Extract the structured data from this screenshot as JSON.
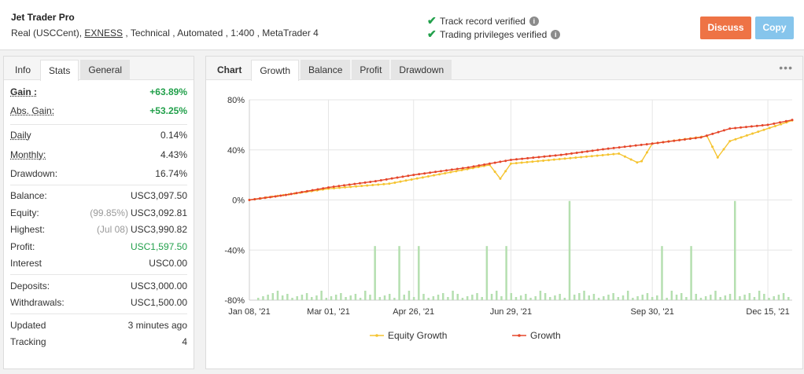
{
  "header": {
    "title": "Jet Trader Pro",
    "subtitle_prefix": "Real (USCCent), ",
    "broker": "EXNESS",
    "subtitle_suffix": " , Technical , Automated , 1:400 , MetaTrader 4",
    "verified": [
      "Track record verified",
      "Trading privileges verified"
    ],
    "discuss_label": "Discuss",
    "copy_label": "Copy"
  },
  "stats_tabs": [
    "Info",
    "Stats",
    "General"
  ],
  "stats": {
    "gain_label": "Gain :",
    "gain_value": "+63.89%",
    "abs_gain_label": "Abs. Gain:",
    "abs_gain_value": "+53.25%",
    "daily_label": "Daily",
    "daily_value": "0.14%",
    "monthly_label": "Monthly:",
    "monthly_value": "4.43%",
    "drawdown_label": "Drawdown:",
    "drawdown_value": "16.74%",
    "balance_label": "Balance:",
    "balance_value": "USC3,097.50",
    "equity_label": "Equity:",
    "equity_pct": "(99.85%)",
    "equity_value": "USC3,092.81",
    "highest_label": "Highest:",
    "highest_date": "(Jul 08)",
    "highest_value": "USC3,990.82",
    "profit_label": "Profit:",
    "profit_value": "USC1,597.50",
    "interest_label": "Interest",
    "interest_value": "USC0.00",
    "deposits_label": "Deposits:",
    "deposits_value": "USC3,000.00",
    "withdrawals_label": "Withdrawals:",
    "withdrawals_value": "USC1,500.00",
    "updated_label": "Updated",
    "updated_value": "3 minutes ago",
    "tracking_label": "Tracking",
    "tracking_value": "4"
  },
  "chart_tabs": [
    "Chart",
    "Growth",
    "Balance",
    "Profit",
    "Drawdown"
  ],
  "menu_icon": "more-dots-icon",
  "colors": {
    "growth": "#e5462a",
    "equity": "#f5c431",
    "bars": "#b5dfb0",
    "green": "#22a04b",
    "discuss": "#ee7345",
    "copy": "#86c5ec"
  },
  "chart_data": {
    "type": "line",
    "x_ticks": [
      "Jan 08, '21",
      "Mar 01, '21",
      "Apr 26, '21",
      "Jun 29, '21",
      "Sep 30, '21",
      "Dec 15, '21"
    ],
    "y_ticks": [
      "80%",
      "40%",
      "0%",
      "-40%",
      "-80%"
    ],
    "ylim": [
      -80,
      80
    ],
    "grid": true,
    "legend": "bottom",
    "series": [
      {
        "name": "Growth",
        "x": [
          "2021-01-08",
          "2021-02-01",
          "2021-03-01",
          "2021-04-01",
          "2021-04-26",
          "2021-06-01",
          "2021-06-29",
          "2021-08-01",
          "2021-09-01",
          "2021-09-30",
          "2021-11-01",
          "2021-11-20",
          "2021-12-15",
          "2021-12-31"
        ],
        "values": [
          0,
          4,
          10,
          15,
          20,
          26,
          32,
          36,
          41,
          45,
          50,
          57,
          60,
          63.89
        ]
      },
      {
        "name": "Equity Growth",
        "x": [
          "2021-01-08",
          "2021-03-01",
          "2021-04-10",
          "2021-06-15",
          "2021-06-22",
          "2021-06-29",
          "2021-09-08",
          "2021-09-20",
          "2021-09-23",
          "2021-09-30",
          "2021-11-05",
          "2021-11-12",
          "2021-11-20",
          "2021-12-31"
        ],
        "values": [
          0,
          9,
          13,
          28,
          17,
          29,
          37,
          30,
          31,
          45,
          51,
          34,
          47,
          63.5
        ]
      }
    ]
  }
}
